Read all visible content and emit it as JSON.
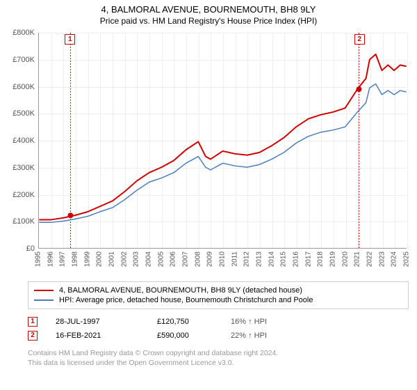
{
  "header": {
    "title": "4, BALMORAL AVENUE, BOURNEMOUTH, BH8 9LY",
    "subtitle": "Price paid vs. HM Land Registry's House Price Index (HPI)"
  },
  "chart": {
    "type": "line",
    "background_color": "#ffffff",
    "grid_color": "#eeeeee",
    "axis_color": "#999999",
    "label_fontsize": 11,
    "x": {
      "min": 1995,
      "max": 2025,
      "tick_step": 1,
      "ticks": [
        1995,
        1996,
        1997,
        1998,
        1999,
        2000,
        2001,
        2002,
        2003,
        2004,
        2005,
        2006,
        2007,
        2008,
        2009,
        2010,
        2011,
        2012,
        2013,
        2014,
        2015,
        2016,
        2017,
        2018,
        2019,
        2020,
        2021,
        2022,
        2023,
        2024,
        2025
      ]
    },
    "y": {
      "min": 0,
      "max": 800000,
      "tick_step": 100000,
      "tick_labels": [
        "£0",
        "£100K",
        "£200K",
        "£300K",
        "£400K",
        "£500K",
        "£600K",
        "£700K",
        "£800K"
      ]
    },
    "series": [
      {
        "id": "property",
        "label": "4, BALMORAL AVENUE, BOURNEMOUTH, BH8 9LY (detached house)",
        "color": "#cc0000",
        "line_width": 2,
        "points": [
          [
            1995,
            105000
          ],
          [
            1996,
            105000
          ],
          [
            1997,
            112000
          ],
          [
            1998,
            122000
          ],
          [
            1999,
            135000
          ],
          [
            2000,
            155000
          ],
          [
            2001,
            175000
          ],
          [
            2002,
            210000
          ],
          [
            2003,
            250000
          ],
          [
            2004,
            280000
          ],
          [
            2005,
            300000
          ],
          [
            2006,
            325000
          ],
          [
            2007,
            365000
          ],
          [
            2008,
            395000
          ],
          [
            2008.6,
            340000
          ],
          [
            2009,
            330000
          ],
          [
            2010,
            360000
          ],
          [
            2011,
            350000
          ],
          [
            2012,
            345000
          ],
          [
            2013,
            355000
          ],
          [
            2014,
            380000
          ],
          [
            2015,
            410000
          ],
          [
            2016,
            450000
          ],
          [
            2017,
            480000
          ],
          [
            2018,
            495000
          ],
          [
            2019,
            505000
          ],
          [
            2020,
            520000
          ],
          [
            2021,
            590000
          ],
          [
            2021.7,
            630000
          ],
          [
            2022,
            700000
          ],
          [
            2022.5,
            720000
          ],
          [
            2023,
            660000
          ],
          [
            2023.5,
            680000
          ],
          [
            2024,
            660000
          ],
          [
            2024.5,
            680000
          ],
          [
            2025,
            675000
          ]
        ]
      },
      {
        "id": "hpi",
        "label": "HPI: Average price, detached house, Bournemouth Christchurch and Poole",
        "color": "#4a7ebb",
        "line_width": 1.5,
        "points": [
          [
            1995,
            95000
          ],
          [
            1996,
            95000
          ],
          [
            1997,
            100000
          ],
          [
            1998,
            108000
          ],
          [
            1999,
            118000
          ],
          [
            2000,
            135000
          ],
          [
            2001,
            150000
          ],
          [
            2002,
            180000
          ],
          [
            2003,
            215000
          ],
          [
            2004,
            245000
          ],
          [
            2005,
            260000
          ],
          [
            2006,
            280000
          ],
          [
            2007,
            315000
          ],
          [
            2008,
            340000
          ],
          [
            2008.6,
            300000
          ],
          [
            2009,
            290000
          ],
          [
            2010,
            315000
          ],
          [
            2011,
            305000
          ],
          [
            2012,
            300000
          ],
          [
            2013,
            310000
          ],
          [
            2014,
            330000
          ],
          [
            2015,
            355000
          ],
          [
            2016,
            390000
          ],
          [
            2017,
            415000
          ],
          [
            2018,
            430000
          ],
          [
            2019,
            438000
          ],
          [
            2020,
            450000
          ],
          [
            2021,
            505000
          ],
          [
            2021.7,
            540000
          ],
          [
            2022,
            595000
          ],
          [
            2022.5,
            610000
          ],
          [
            2023,
            570000
          ],
          [
            2023.5,
            585000
          ],
          [
            2024,
            570000
          ],
          [
            2024.5,
            585000
          ],
          [
            2025,
            580000
          ]
        ]
      }
    ],
    "markers": [
      {
        "id": "1",
        "x": 1997.56,
        "y": 120750,
        "color": "#cc0000",
        "dash_color": "#cc0000"
      },
      {
        "id": "2",
        "x": 2021.13,
        "y": 590000,
        "color": "#cc0000",
        "dash_color": "#cc0000"
      }
    ]
  },
  "legend": {
    "border_color": "#cccccc",
    "items": [
      {
        "series": "property"
      },
      {
        "series": "hpi"
      }
    ]
  },
  "sales": [
    {
      "badge": "1",
      "date": "28-JUL-1997",
      "price": "£120,750",
      "pct": "16% ↑ HPI"
    },
    {
      "badge": "2",
      "date": "16-FEB-2021",
      "price": "£590,000",
      "pct": "22% ↑ HPI"
    }
  ],
  "attribution": {
    "line1": "Contains HM Land Registry data © Crown copyright and database right 2024.",
    "line2": "This data is licensed under the Open Government Licence v3.0."
  }
}
